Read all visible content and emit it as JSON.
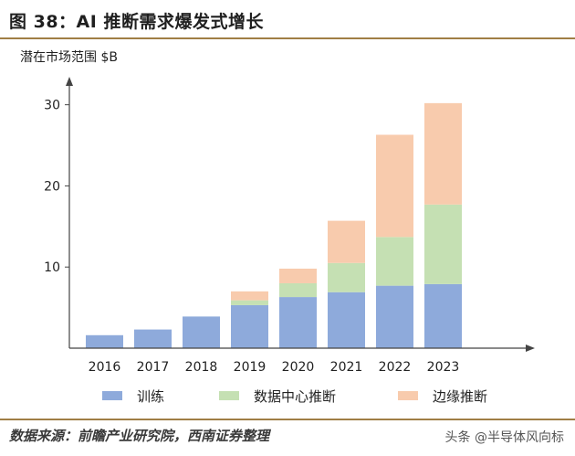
{
  "header": {
    "title": "图 38：AI 推断需求爆发式增长"
  },
  "footer": {
    "source": "数据来源：前瞻产业研究院，西南证券整理",
    "watermark": "头条 @半导体风向标"
  },
  "chart_data": {
    "type": "bar",
    "stacked": true,
    "ylabel": "潜在市场范围  $B",
    "ylim": [
      0,
      33
    ],
    "yticks": [
      10,
      20,
      30
    ],
    "categories": [
      "2016",
      "2017",
      "2018",
      "2019",
      "2020",
      "2021",
      "2022",
      "2023"
    ],
    "series": [
      {
        "name": "训练",
        "color": "#8eaadb",
        "values": [
          1.6,
          2.3,
          3.9,
          5.3,
          6.3,
          6.9,
          7.7,
          7.9
        ]
      },
      {
        "name": "数据中心推断",
        "color": "#c5e0b3",
        "values": [
          0,
          0,
          0,
          0.6,
          1.7,
          3.6,
          6.0,
          9.8
        ]
      },
      {
        "name": "边缘推断",
        "color": "#f8cbad",
        "values": [
          0,
          0,
          0,
          1.1,
          1.8,
          5.2,
          12.6,
          12.5
        ]
      }
    ],
    "legend": "bottom",
    "grid": false
  }
}
